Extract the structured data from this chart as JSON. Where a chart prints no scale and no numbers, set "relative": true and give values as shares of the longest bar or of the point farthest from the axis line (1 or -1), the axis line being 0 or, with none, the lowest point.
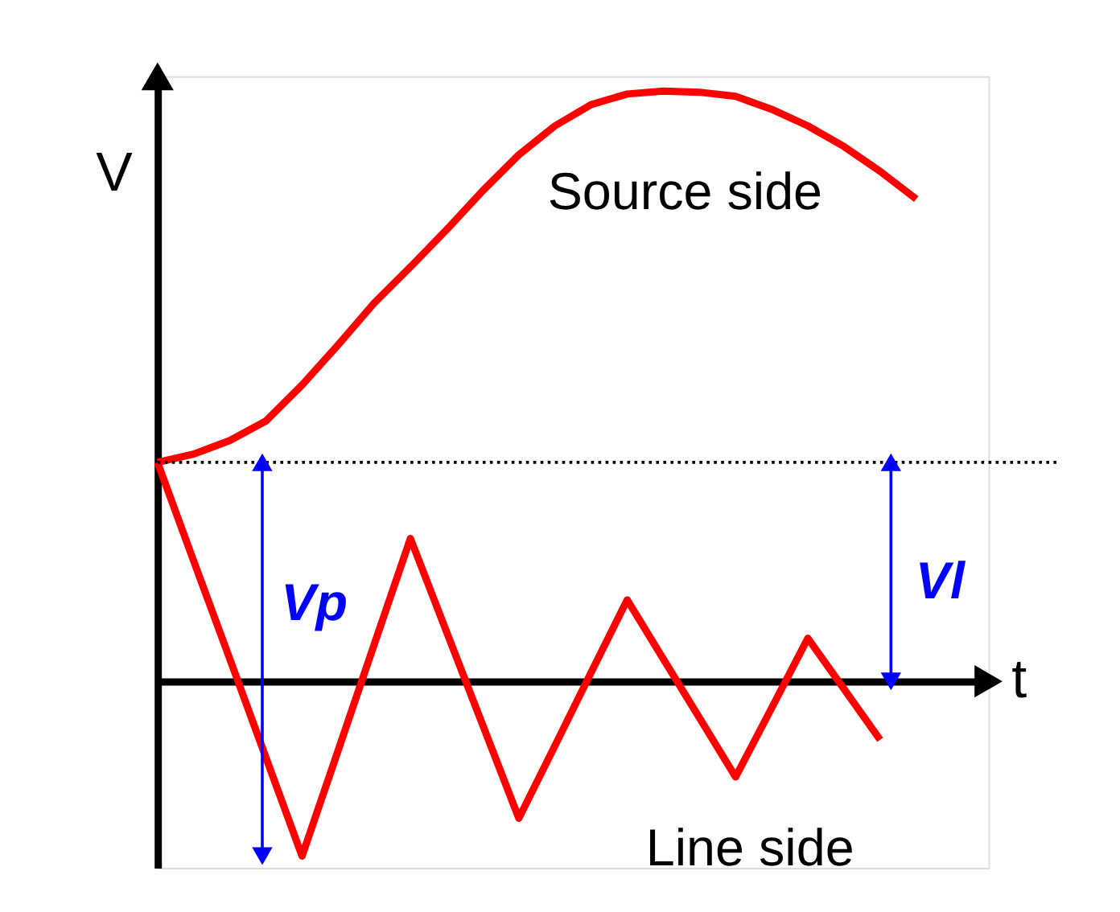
{
  "chart_data": {
    "type": "line",
    "relative": true,
    "xlabel": "t",
    "ylabel": "V",
    "legend": false,
    "line_style": "solid",
    "categories": [
      null,
      null,
      null,
      null,
      null,
      null,
      null,
      null,
      null,
      null,
      null,
      null,
      null,
      null,
      null,
      null,
      null,
      null,
      null,
      null,
      null,
      null,
      null,
      null
    ],
    "series": [
      {
        "name": "Source side",
        "color": "#ff0000",
        "values": [
          0.371,
          0.385,
          0.408,
          0.441,
          0.502,
          0.57,
          0.641,
          0.702,
          0.765,
          0.831,
          0.892,
          0.941,
          0.977,
          0.995,
          1.0,
          0.998,
          0.991,
          0.969,
          0.941,
          0.906,
          0.864,
          0.817,
          null,
          null
        ]
      },
      {
        "name": "Line side",
        "color": "#ff0000",
        "values": [
          0.371,
          0.204,
          0.038,
          -0.129,
          -0.296,
          -0.117,
          0.063,
          0.242,
          0.084,
          -0.074,
          -0.232,
          -0.109,
          0.015,
          0.138,
          0.038,
          -0.062,
          -0.162,
          -0.045,
          0.073,
          -0.013,
          -0.099,
          null,
          null,
          null
        ]
      }
    ],
    "ref_lines": [
      {
        "axis": "y",
        "value": 0.371,
        "line_style": "dotted",
        "color": "#000000"
      }
    ],
    "annotations": [
      "Vp",
      "Vl"
    ]
  }
}
